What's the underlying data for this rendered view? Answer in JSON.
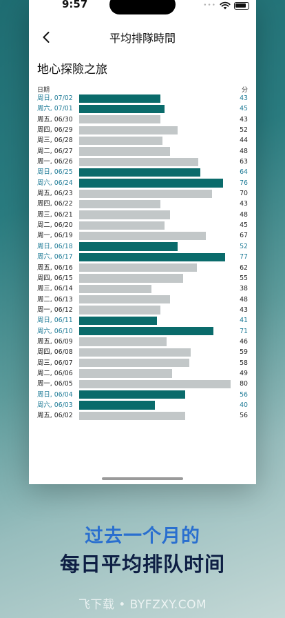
{
  "status_bar": {
    "time": "9:57",
    "signal_dots": "•••",
    "wifi_icon": "wifi-icon",
    "battery_icon": "battery-icon"
  },
  "nav": {
    "back_icon": "chevron-left-icon",
    "title": "平均排隊時間"
  },
  "attraction_name": "地心探險之旅",
  "columns": {
    "date_label": "日期",
    "minutes_label": "分"
  },
  "colors": {
    "weekend": "#0a6b6b",
    "weekday_bar": "#c2c7c8",
    "weekend_text": "#1d7a96",
    "weekday_text": "#222222",
    "caption_line1": "#2a6fcf",
    "caption_line2": "#0e1f44"
  },
  "chart_data": {
    "type": "bar",
    "orientation": "horizontal",
    "xlabel": "日期",
    "ylabel": "分",
    "categories": [
      "周日, 07/02",
      "周六, 07/01",
      "周五, 06/30",
      "周四, 06/29",
      "周三, 06/28",
      "周二, 06/27",
      "周一, 06/26",
      "周日, 06/25",
      "周六, 06/24",
      "周五, 06/23",
      "周四, 06/22",
      "周三, 06/21",
      "周二, 06/20",
      "周一, 06/19",
      "周日, 06/18",
      "周六, 06/17",
      "周五, 06/16",
      "周四, 06/15",
      "周三, 06/14",
      "周二, 06/13",
      "周一, 06/12",
      "周日, 06/11",
      "周六, 06/10",
      "周五, 06/09",
      "周四, 06/08",
      "周三, 06/07",
      "周二, 06/06",
      "周一, 06/05",
      "周日, 06/04",
      "周六, 06/03",
      "周五, 06/02"
    ],
    "values": [
      43,
      45,
      43,
      52,
      44,
      48,
      63,
      64,
      76,
      70,
      43,
      48,
      45,
      67,
      52,
      77,
      62,
      55,
      38,
      48,
      43,
      41,
      71,
      46,
      59,
      58,
      49,
      80,
      56,
      40,
      56
    ],
    "weekend": [
      true,
      true,
      false,
      false,
      false,
      false,
      false,
      true,
      true,
      false,
      false,
      false,
      false,
      false,
      true,
      true,
      false,
      false,
      false,
      false,
      false,
      true,
      true,
      false,
      false,
      false,
      false,
      false,
      true,
      true,
      false
    ],
    "xlim": [
      0,
      80
    ]
  },
  "caption": {
    "line1": "过去一个月的",
    "line2": "每日平均排队时间"
  },
  "watermark": "飞下载 • BYFZXY.COM"
}
